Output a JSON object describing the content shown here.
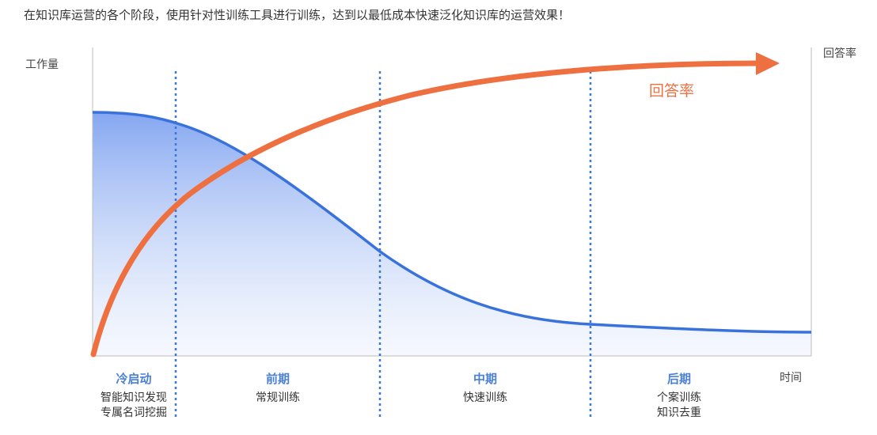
{
  "title": "在知识库运营的各个阶段，使用针对性训练工具进行训练，达到以最低成本快速泛化知识库的运营效果！",
  "y_axis_label": "工作量",
  "y2_axis_label": "回答率",
  "x_axis_label": "时间",
  "curve_label": "回答率",
  "phases": [
    {
      "name": "冷启动",
      "tasks": [
        "智能知识发现",
        "专属名词挖掘"
      ]
    },
    {
      "name": "前期",
      "tasks": [
        "常规训练"
      ]
    },
    {
      "name": "中期",
      "tasks": [
        "快速训练"
      ]
    },
    {
      "name": "后期",
      "tasks": [
        "个案训练",
        "知识去重"
      ]
    }
  ]
}
